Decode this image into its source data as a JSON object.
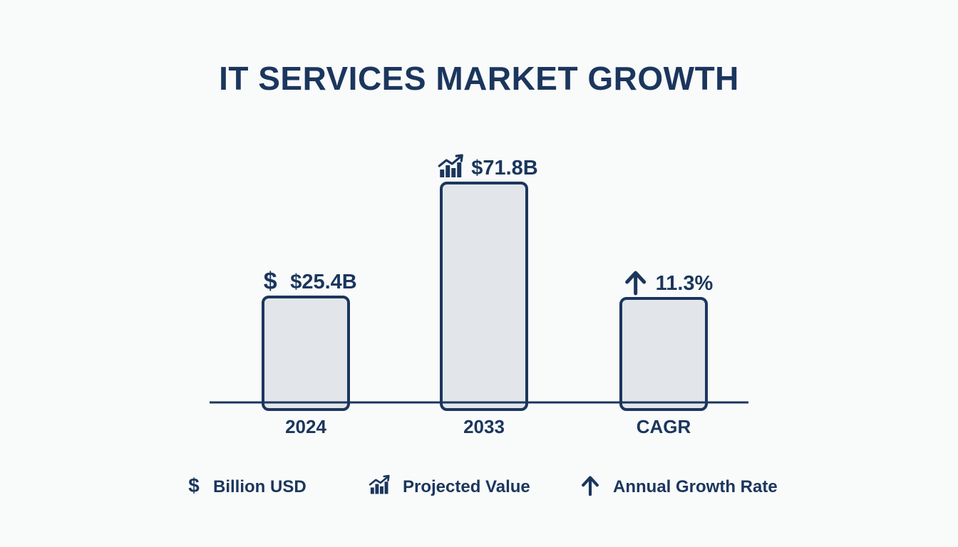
{
  "chart_data": {
    "type": "bar",
    "title": "IT SERVICES MARKET GROWTH",
    "categories": [
      "2024",
      "2033",
      "CAGR"
    ],
    "values": [
      25.4,
      71.8,
      11.3
    ],
    "value_labels": [
      "$25.4B",
      "$71.8B",
      "11.3%"
    ],
    "label_icons": [
      "dollar-icon",
      "growth-chart-icon",
      "arrow-up-icon"
    ],
    "xlabel": "",
    "ylabel": "",
    "grid": false,
    "legend_position": "bottom",
    "legend": [
      {
        "icon": "dollar-icon",
        "label": "Billion USD"
      },
      {
        "icon": "growth-chart-icon",
        "label": "Projected Value"
      },
      {
        "icon": "arrow-up-icon",
        "label": "Annual Growth Rate"
      }
    ],
    "colors": {
      "bar_fill": "#e2e5e9",
      "bar_stroke": "#1b365d",
      "text": "#1b365d",
      "background": "#f9fafa"
    }
  }
}
